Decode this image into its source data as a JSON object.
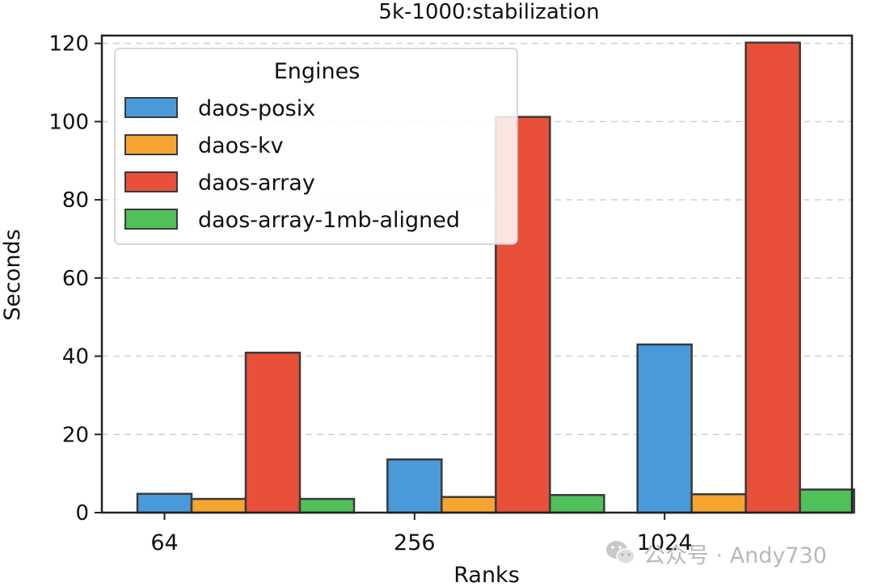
{
  "chart_data": {
    "type": "bar",
    "title": "5k-1000:stabilization",
    "xlabel": "Ranks",
    "ylabel": "Seconds",
    "categories": [
      "64",
      "256",
      "1024"
    ],
    "ylim": [
      0,
      122
    ],
    "yticks": [
      0,
      20,
      40,
      60,
      80,
      100,
      120
    ],
    "grid": true,
    "legend": {
      "title": "Engines",
      "placement": "top-left"
    },
    "series": [
      {
        "name": "daos-posix",
        "color": "#4a9ad9",
        "values": [
          4.8,
          13.6,
          43.0
        ]
      },
      {
        "name": "daos-kv",
        "color": "#f6a530",
        "values": [
          3.5,
          4.0,
          4.7
        ]
      },
      {
        "name": "daos-array",
        "color": "#e9503a",
        "values": [
          40.9,
          101.2,
          120.2
        ]
      },
      {
        "name": "daos-array-1mb-aligned",
        "color": "#50c05a",
        "values": [
          3.5,
          4.5,
          5.9
        ]
      }
    ]
  },
  "watermark": {
    "text": "公众号 · Andy730",
    "icon": "wechat-icon"
  }
}
